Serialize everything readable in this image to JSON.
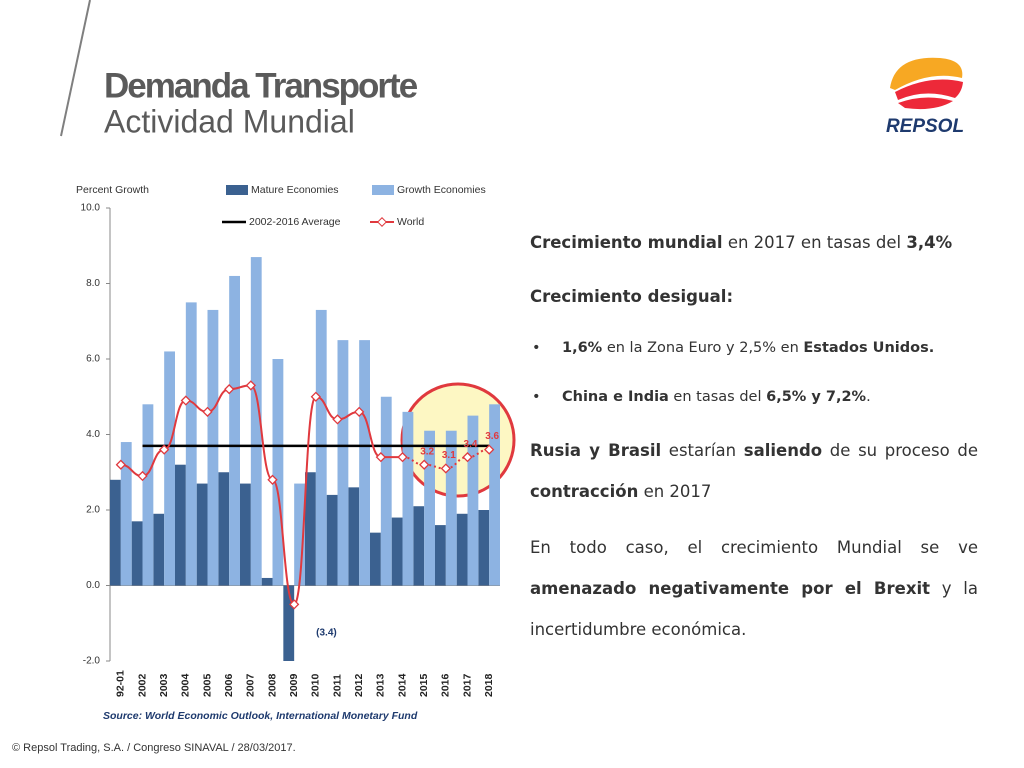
{
  "header": {
    "title": "Demanda Transporte",
    "subtitle": "Actividad Mundial",
    "logo": "REPSOL"
  },
  "chart_data": {
    "type": "bar",
    "y_label": "Percent Growth",
    "categories": [
      "92-01",
      "2002",
      "2003",
      "2004",
      "2005",
      "2006",
      "2007",
      "2008",
      "2009",
      "2010",
      "2011",
      "2012",
      "2013",
      "2014",
      "2015",
      "2016",
      "2017",
      "2018"
    ],
    "series": [
      {
        "name": "Mature Economies",
        "color": "#3b6190",
        "values": [
          2.8,
          1.7,
          1.9,
          3.2,
          2.7,
          3.0,
          2.7,
          0.2,
          -3.4,
          3.0,
          2.4,
          2.6,
          1.4,
          1.8,
          2.1,
          1.6,
          1.9,
          2.0
        ],
        "value_labels": [
          null,
          null,
          null,
          null,
          null,
          null,
          null,
          null,
          "(3.4)",
          null,
          null,
          null,
          null,
          null,
          null,
          null,
          null,
          null
        ]
      },
      {
        "name": "Growth Economies",
        "color": "#8db3e2",
        "values": [
          3.8,
          4.8,
          6.2,
          7.5,
          7.3,
          8.2,
          8.7,
          6.0,
          2.7,
          7.3,
          6.5,
          6.5,
          5.0,
          4.6,
          4.1,
          4.1,
          4.5,
          4.8
        ]
      },
      {
        "name": "World",
        "type": "line",
        "color": "#e0393e",
        "values": [
          3.2,
          2.9,
          3.6,
          4.9,
          4.6,
          5.2,
          5.3,
          2.8,
          -0.5,
          5.0,
          4.4,
          4.6,
          3.4,
          3.4,
          3.2,
          3.1,
          3.4,
          3.6
        ],
        "value_labels": [
          null,
          null,
          null,
          null,
          null,
          null,
          null,
          null,
          null,
          null,
          null,
          null,
          null,
          null,
          "3.2",
          "3.1",
          "3.4",
          "3.6"
        ]
      }
    ],
    "reference_line": {
      "name": "2002-2016 Average",
      "value": 3.7,
      "color": "#000000"
    },
    "ylim": [
      -2,
      10
    ],
    "yticks": [
      {
        "value": -2,
        "label": "-2.0"
      },
      {
        "value": 0,
        "label": "0.0"
      },
      {
        "value": 2,
        "label": "2.0"
      },
      {
        "value": 4,
        "label": "4.0"
      },
      {
        "value": 6,
        "label": "6.0"
      },
      {
        "value": 8,
        "label": "8.0"
      },
      {
        "value": 10,
        "label": "10.0"
      }
    ],
    "source": "Source: World Economic Outlook, International Monetary Fund"
  },
  "text": {
    "blocks": [
      {
        "kind": "p",
        "runs": [
          {
            "text": "Crecimiento mundial",
            "bold": true
          },
          {
            "text": " en 2017 en tasas del "
          },
          {
            "text": "3,4%",
            "bold": true
          }
        ]
      },
      {
        "kind": "p",
        "runs": [
          {
            "text": "Crecimiento desigual:",
            "bold": true
          }
        ]
      },
      {
        "kind": "bullet",
        "runs": [
          {
            "text": "1,6%",
            "bold": true
          },
          {
            "text": " en la Zona Euro y 2,5% en "
          },
          {
            "text": "Estados Unidos.",
            "bold": true
          }
        ]
      },
      {
        "kind": "bullet",
        "runs": [
          {
            "text": "China e India",
            "bold": true
          },
          {
            "text": " en tasas del "
          },
          {
            "text": "6,5% y 7,2%",
            "bold": true
          },
          {
            "text": "."
          }
        ]
      },
      {
        "kind": "p",
        "runs": [
          {
            "text": "Rusia y Brasil",
            "bold": true
          },
          {
            "text": " estarían "
          },
          {
            "text": "saliendo",
            "bold": true
          },
          {
            "text": " de su proceso de "
          },
          {
            "text": "contracción",
            "bold": true
          },
          {
            "text": " en 2017"
          }
        ]
      },
      {
        "kind": "p",
        "runs": [
          {
            "text": "En todo caso, el crecimiento Mundial se ve "
          },
          {
            "text": "amenazado negativamente por el Brexit",
            "bold": true
          },
          {
            "text": " y la incertidumbre económica."
          }
        ]
      }
    ]
  },
  "footer": "© Repsol Trading, S.A. /  Congreso SINAVAL / 28/03/2017."
}
